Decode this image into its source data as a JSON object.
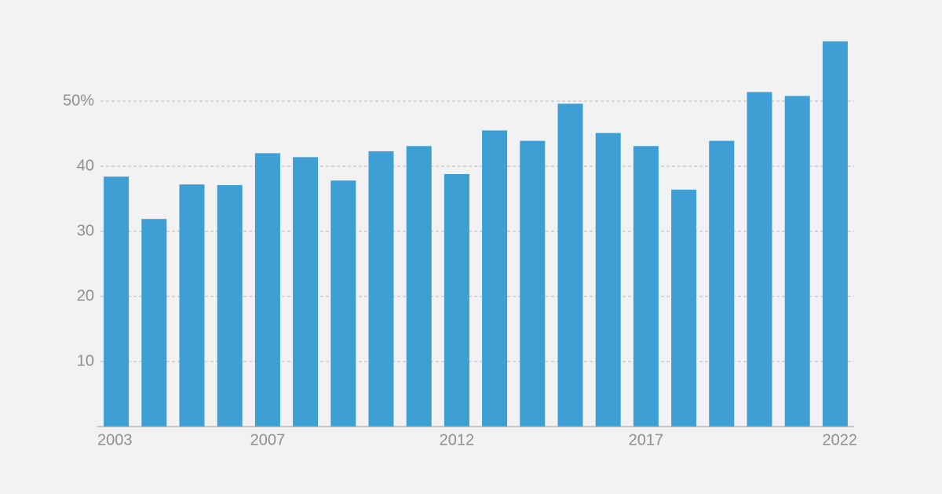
{
  "chart_data": {
    "type": "bar",
    "categories": [
      "2003",
      null,
      null,
      null,
      "2007",
      null,
      null,
      null,
      null,
      "2012",
      null,
      null,
      null,
      null,
      "2017",
      null,
      null,
      null,
      null,
      "2022"
    ],
    "values": [
      38.4,
      31.9,
      37.2,
      37.1,
      42.0,
      41.4,
      37.8,
      42.3,
      43.1,
      38.8,
      45.5,
      43.9,
      49.6,
      45.1,
      43.1,
      36.4,
      43.9,
      51.4,
      50.8,
      59.2
    ],
    "color": "#3d9fd3",
    "ylim": [
      0,
      60
    ],
    "yticks": [
      10,
      20,
      30,
      40,
      {
        "value": 50,
        "label": "50%"
      }
    ],
    "grid": true
  }
}
